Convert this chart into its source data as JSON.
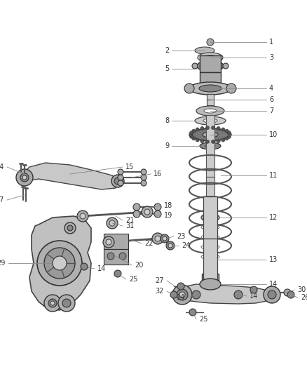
{
  "background_color": "#ffffff",
  "fig_width": 4.38,
  "fig_height": 5.33,
  "dpi": 100,
  "line_color": "#555555",
  "text_color": "#333333",
  "part_fill": "#d8d8d8",
  "part_edge": "#444444",
  "font_size": 7.0
}
